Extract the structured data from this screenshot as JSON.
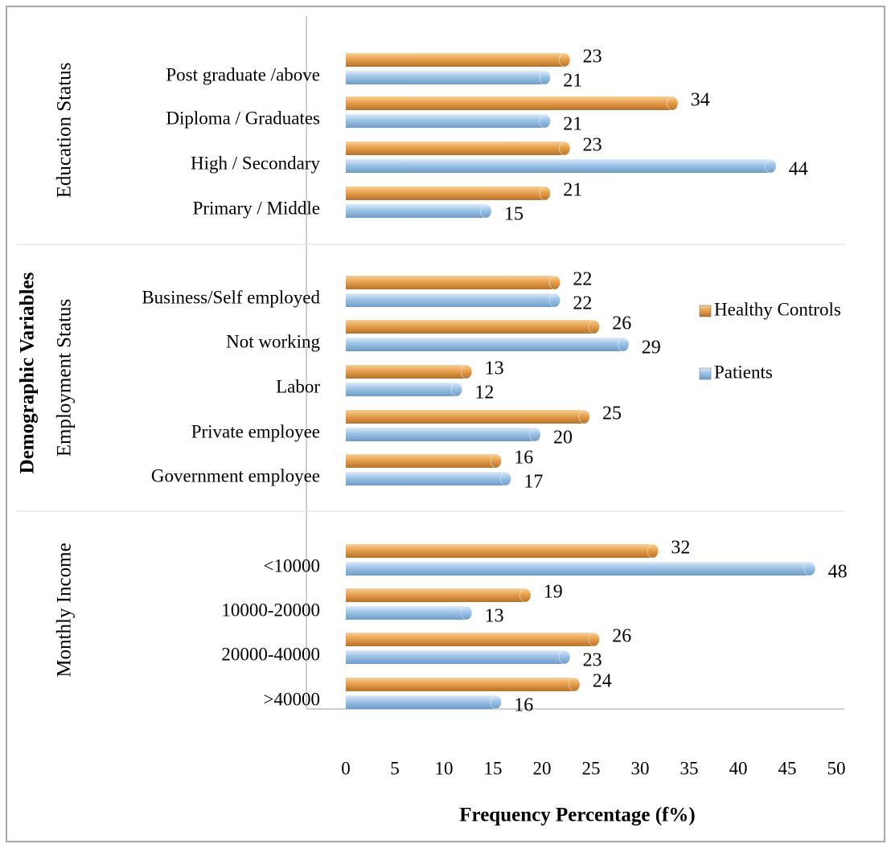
{
  "chart_data": {
    "type": "bar",
    "orientation": "horizontal",
    "xlabel": "Frequency Percentage (f%)",
    "ylabel": "Demographic  Variables",
    "xlim": [
      0,
      50
    ],
    "x_ticks": [
      "0",
      "5",
      "10",
      "15",
      "20",
      "25",
      "30",
      "35",
      "40",
      "45",
      "50"
    ],
    "grid": false,
    "legend_position": "right",
    "series": [
      {
        "name": "Healthy Controls",
        "color": "#E8A04C"
      },
      {
        "name": "Patients",
        "color": "#9DC3E6"
      }
    ],
    "groups": [
      {
        "label": "Education Status",
        "categories": [
          {
            "label": "Post graduate /above",
            "healthy": 23,
            "patients": 21,
            "healthy_label": "23",
            "patients_label": "21"
          },
          {
            "label": "Diploma / Graduates",
            "healthy": 34,
            "patients": 21,
            "healthy_label": "34",
            "patients_label": "21"
          },
          {
            "label": "High / Secondary",
            "healthy": 23,
            "patients": 44,
            "healthy_label": "23",
            "patients_label": "44"
          },
          {
            "label": "Primary / Middle",
            "healthy": 21,
            "patients": 15,
            "healthy_label": "21",
            "patients_label": "15"
          }
        ]
      },
      {
        "label": "Employment Status",
        "categories": [
          {
            "label": "Business/Self employed",
            "healthy": 22,
            "patients": 22,
            "healthy_label": "22",
            "patients_label": "22"
          },
          {
            "label": "Not working",
            "healthy": 26,
            "patients": 29,
            "healthy_label": "26",
            "patients_label": "29"
          },
          {
            "label": "Labor",
            "healthy": 13,
            "patients": 12,
            "healthy_label": "13",
            "patients_label": "12"
          },
          {
            "label": "Private employee",
            "healthy": 25,
            "patients": 20,
            "healthy_label": "25",
            "patients_label": "20"
          },
          {
            "label": "Government employee",
            "healthy": 16,
            "patients": 17,
            "healthy_label": "16",
            "patients_label": "17"
          }
        ]
      },
      {
        "label": "Monthly Income",
        "categories": [
          {
            "label": "<10000",
            "healthy": 32,
            "patients": 48,
            "healthy_label": "32",
            "patients_label": "48"
          },
          {
            "label": "10000-20000",
            "healthy": 19,
            "patients": 13,
            "healthy_label": "19",
            "patients_label": "13"
          },
          {
            "label": "20000-40000",
            "healthy": 26,
            "patients": 23,
            "healthy_label": "26",
            "patients_label": "23"
          },
          {
            "label": ">40000",
            "healthy": 24,
            "patients": 16,
            "healthy_label": "24",
            "patients_label": "16"
          }
        ]
      }
    ]
  }
}
